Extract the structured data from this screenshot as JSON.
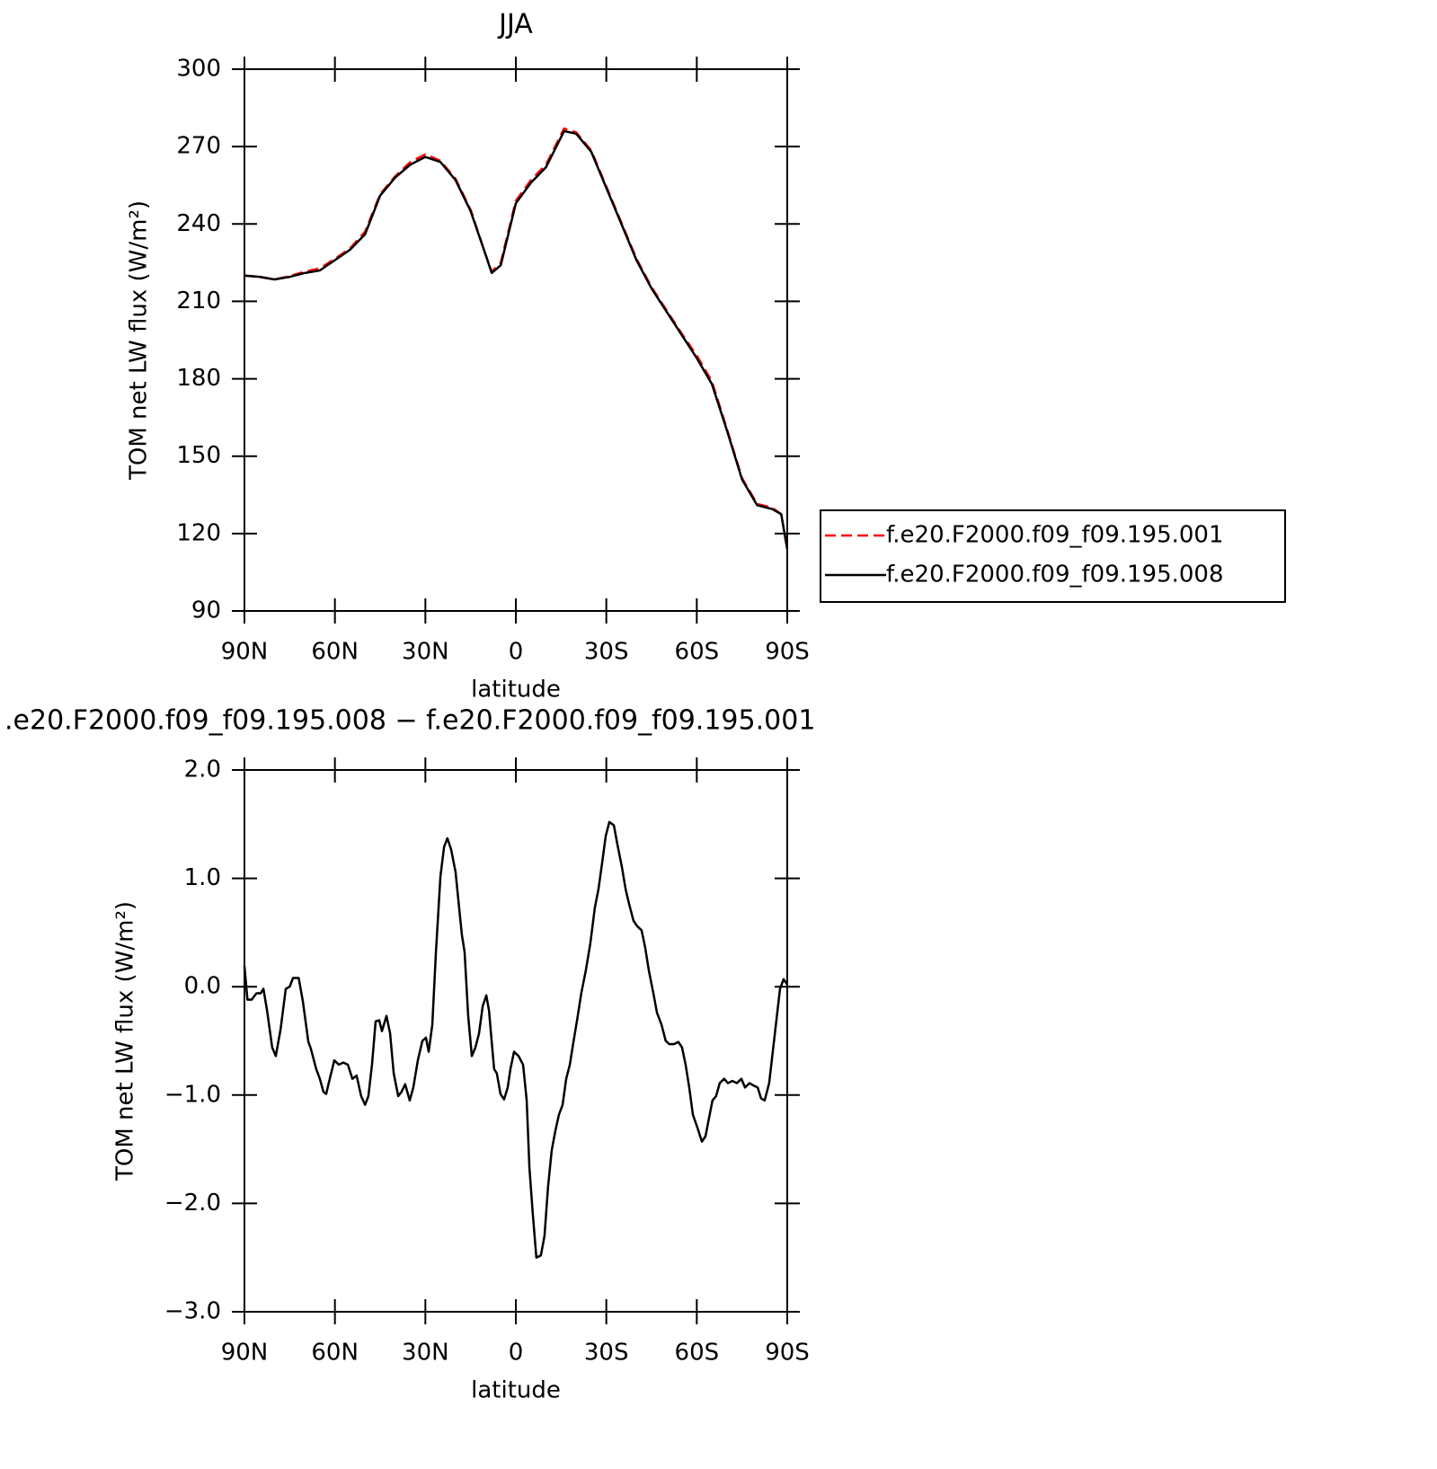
{
  "chart_data": [
    {
      "type": "line",
      "title": "JJA",
      "x_label": "latitude",
      "y_label": "TOM net LW flux (W/m²)",
      "xlim": [
        90,
        -90
      ],
      "xticks": [
        {
          "value": 90,
          "label": "90N"
        },
        {
          "value": 60,
          "label": "60N"
        },
        {
          "value": 30,
          "label": "30N"
        },
        0,
        {
          "value": -30,
          "label": "30S"
        },
        {
          "value": -60,
          "label": "60S"
        },
        {
          "value": -90,
          "label": "90S"
        }
      ],
      "ylim": [
        90,
        300
      ],
      "yticks": [
        90,
        120,
        150,
        180,
        210,
        240,
        270,
        300
      ],
      "legend": "right",
      "x": [
        90,
        85,
        80,
        75,
        70,
        65,
        60,
        55,
        50,
        45,
        40,
        35,
        30,
        25,
        20,
        15,
        10,
        8,
        5,
        0,
        -5,
        -10,
        -16,
        -20,
        -25,
        -30,
        -35,
        -40,
        -45,
        -50,
        -55,
        -60,
        -65,
        -70,
        -75,
        -80,
        -85,
        -88,
        -90
      ],
      "series": [
        {
          "name": "f.e20.F2000.f09_f09.195.001",
          "color": "#ff0000",
          "dash": true,
          "values": [
            220,
            219.5,
            218.5,
            219.8,
            221.5,
            222.8,
            226.5,
            230.5,
            237,
            251.5,
            258.5,
            264,
            267,
            264.5,
            257.5,
            245.5,
            228,
            221.5,
            225,
            249,
            257,
            263,
            277,
            275.5,
            268.5,
            254.5,
            240.5,
            226.5,
            215.5,
            206.5,
            197.5,
            189,
            179,
            160.5,
            141.5,
            131.5,
            130,
            127.5,
            114
          ]
        },
        {
          "name": "f.e20.F2000.f09_f09.195.008",
          "color": "#000000",
          "dash": false,
          "values": [
            220,
            219.5,
            218.5,
            219.5,
            221,
            222,
            226,
            230,
            236,
            251,
            258,
            263,
            266,
            264,
            257,
            245,
            228,
            221,
            224,
            248,
            256,
            262,
            276,
            275,
            268,
            254,
            240,
            226,
            215,
            206,
            197,
            188,
            178,
            160,
            141,
            131,
            129.5,
            127.5,
            114
          ]
        }
      ]
    },
    {
      "type": "line",
      "title": ".e20.F2000.f09_f09.195.008 − f.e20.F2000.f09_f09.195.001",
      "x_label": "latitude",
      "y_label": "TOM net LW flux (W/m²)",
      "xlim": [
        90,
        -90
      ],
      "xticks": [
        {
          "value": 90,
          "label": "90N"
        },
        {
          "value": 60,
          "label": "60N"
        },
        {
          "value": 30,
          "label": "30N"
        },
        0,
        {
          "value": -30,
          "label": "30S"
        },
        {
          "value": -60,
          "label": "60S"
        },
        {
          "value": -90,
          "label": "90S"
        }
      ],
      "ylim": [
        -3,
        2
      ],
      "yticks": [
        {
          "value": -3,
          "label": "−3.0"
        },
        {
          "value": -2,
          "label": "−2.0"
        },
        {
          "value": -1,
          "label": "−1.0"
        },
        {
          "value": 0,
          "label": "0.0"
        },
        {
          "value": 1,
          "label": "1.0"
        },
        {
          "value": 2,
          "label": "2.0"
        }
      ],
      "x": [
        90,
        89,
        87.6,
        86,
        84.6,
        83.7,
        82.5,
        80.8,
        79.6,
        78,
        76.3,
        75,
        73.9,
        72,
        70.6,
        68.8,
        68,
        66.2,
        65,
        63.8,
        62.9,
        61.7,
        60.2,
        58.7,
        57.2,
        55.7,
        54.2,
        52.8,
        51.3,
        50,
        48.9,
        47.7,
        46.5,
        45.3,
        44.4,
        42.9,
        41.7,
        40.5,
        39,
        37.9,
        36.7,
        35.2,
        34,
        32.5,
        31,
        29.8,
        28.9,
        27.7,
        26.5,
        25,
        23.8,
        22.7,
        21.5,
        20,
        19.1,
        17.9,
        17,
        15.8,
        14.6,
        13.4,
        12.2,
        11,
        9.8,
        8.9,
        8,
        7.2,
        6.3,
        5.1,
        3.9,
        2.7,
        1.8,
        0.6,
        -0.9,
        -2.4,
        -3.6,
        -4.5,
        -5.6,
        -6.8,
        -8.3,
        -9.5,
        -10.7,
        -11.9,
        -13.1,
        -14.3,
        -15.5,
        -16.7,
        -17.9,
        -19.1,
        -20.3,
        -21.7,
        -23.2,
        -24.7,
        -26.2,
        -27.4,
        -28.6,
        -29.8,
        -31,
        -32.5,
        -33.7,
        -35.2,
        -36.4,
        -37.5,
        -39,
        -40.2,
        -41.7,
        -42.9,
        -44.1,
        -45.6,
        -46.8,
        -48.3,
        -49.7,
        -50.9,
        -52.4,
        -53.9,
        -55.1,
        -56.3,
        -57.5,
        -58.7,
        -60.2,
        -61.7,
        -62.9,
        -64,
        -65.2,
        -66.4,
        -67.6,
        -69.1,
        -70.3,
        -71.8,
        -73.3,
        -74.8,
        -76,
        -77.5,
        -78.7,
        -80.2,
        -81.3,
        -82.5,
        -84,
        -85.2,
        -86.4,
        -87.6,
        -88.8,
        -90
      ],
      "series": [
        {
          "color": "#000000",
          "dash": false,
          "values": [
            0.19,
            -0.12,
            -0.12,
            -0.06,
            -0.06,
            -0.02,
            -0.22,
            -0.56,
            -0.64,
            -0.39,
            -0.02,
            0,
            0.08,
            0.08,
            -0.14,
            -0.51,
            -0.57,
            -0.76,
            -0.85,
            -0.97,
            -0.99,
            -0.85,
            -0.68,
            -0.72,
            -0.7,
            -0.72,
            -0.85,
            -0.82,
            -1.01,
            -1.09,
            -1.01,
            -0.72,
            -0.32,
            -0.31,
            -0.41,
            -0.27,
            -0.43,
            -0.8,
            -1.01,
            -0.97,
            -0.9,
            -1.05,
            -0.93,
            -0.68,
            -0.5,
            -0.47,
            -0.6,
            -0.35,
            0.32,
            1.02,
            1.29,
            1.37,
            1.27,
            1.06,
            0.81,
            0.48,
            0.32,
            -0.27,
            -0.64,
            -0.56,
            -0.43,
            -0.18,
            -0.08,
            -0.22,
            -0.51,
            -0.76,
            -0.8,
            -0.99,
            -1.04,
            -0.93,
            -0.76,
            -0.6,
            -0.64,
            -0.72,
            -1.05,
            -1.67,
            -2.09,
            -2.5,
            -2.48,
            -2.3,
            -1.84,
            -1.51,
            -1.33,
            -1.18,
            -1.09,
            -0.85,
            -0.72,
            -0.51,
            -0.31,
            -0.06,
            0.15,
            0.4,
            0.73,
            0.9,
            1.14,
            1.39,
            1.52,
            1.49,
            1.31,
            1.1,
            0.9,
            0.77,
            0.61,
            0.56,
            0.52,
            0.36,
            0.15,
            -0.06,
            -0.24,
            -0.35,
            -0.5,
            -0.53,
            -0.53,
            -0.51,
            -0.56,
            -0.72,
            -0.93,
            -1.18,
            -1.3,
            -1.43,
            -1.38,
            -1.22,
            -1.05,
            -1.01,
            -0.89,
            -0.85,
            -0.89,
            -0.87,
            -0.89,
            -0.85,
            -0.93,
            -0.89,
            -0.91,
            -0.93,
            -1.03,
            -1.05,
            -0.89,
            -0.6,
            -0.31,
            -0.02,
            0.07,
            0.02
          ]
        }
      ]
    }
  ]
}
